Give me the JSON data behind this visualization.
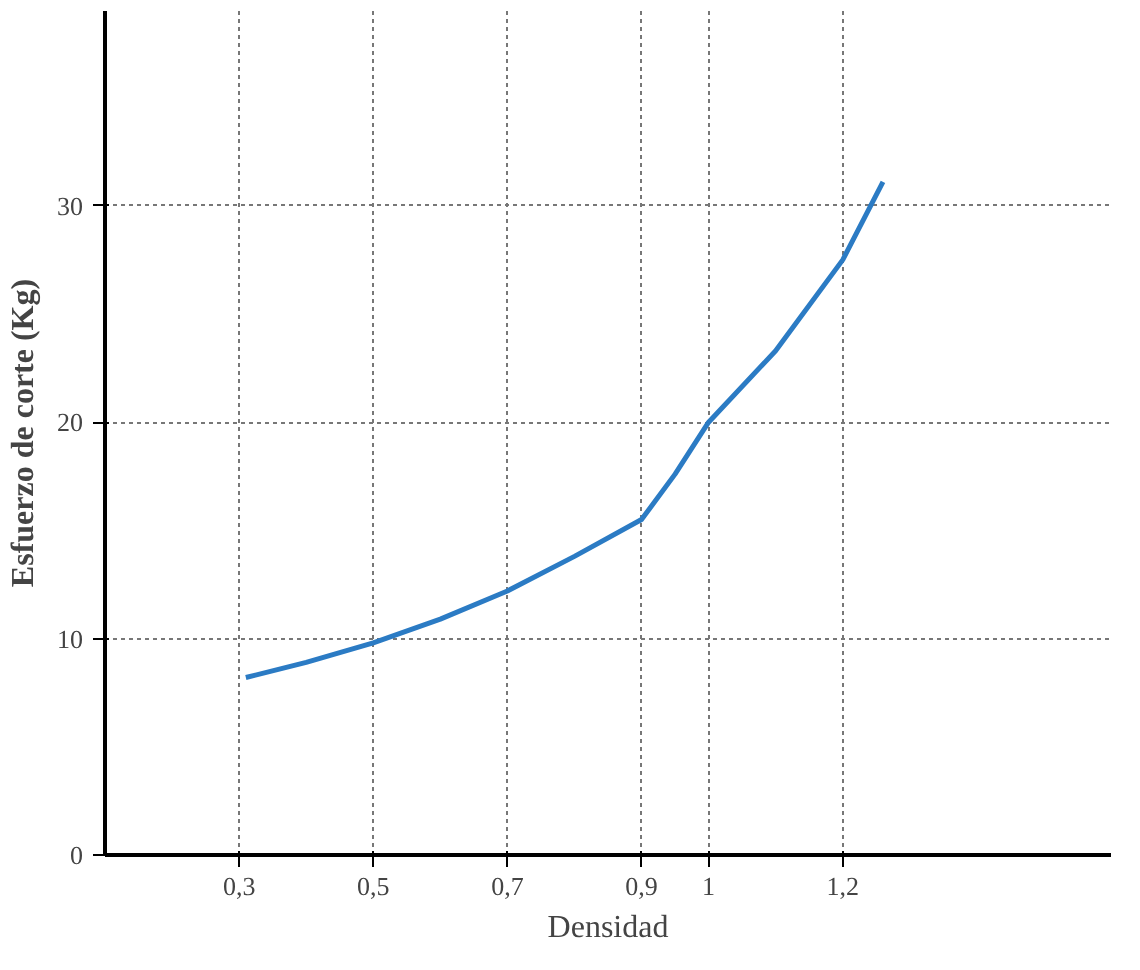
{
  "chart_data": {
    "type": "line",
    "xlabel": "Densidad",
    "ylabel": "Esfuerzo de corte (Kg)",
    "x": [
      0.31,
      0.4,
      0.5,
      0.6,
      0.7,
      0.8,
      0.9,
      0.95,
      1.0,
      1.1,
      1.2,
      1.26
    ],
    "series": [
      {
        "color": "#2b7bc4",
        "values": [
          8.2,
          8.9,
          9.8,
          10.9,
          12.2,
          13.8,
          15.5,
          17.6,
          20.0,
          23.3,
          27.5,
          31.1
        ]
      }
    ],
    "xlim": [
      0.1,
      1.6
    ],
    "ylim": [
      0,
      39
    ],
    "xticks": [
      {
        "value": 0.3,
        "label": "0,3"
      },
      {
        "value": 0.5,
        "label": "0,5"
      },
      {
        "value": 0.7,
        "label": "0,7"
      },
      {
        "value": 0.9,
        "label": "0,9"
      },
      {
        "value": 1,
        "label": "1"
      },
      {
        "value": 1.2,
        "label": "1,2"
      }
    ],
    "yticks": [
      0,
      10,
      20,
      30
    ],
    "grid": true,
    "line_style": "solid",
    "marker": "none"
  }
}
